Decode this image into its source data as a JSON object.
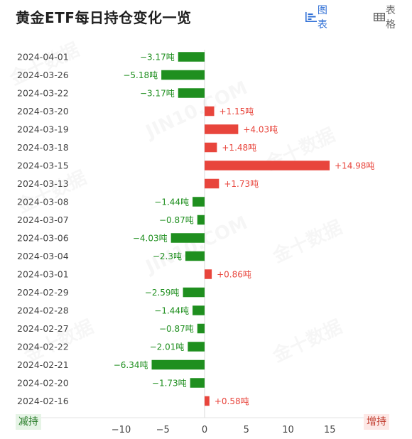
{
  "header": {
    "title": "黄金ETF每日持仓变化一览",
    "chart_tab_label": "图表",
    "table_tab_label": "表格"
  },
  "legend": {
    "left_label": "减持",
    "right_label": "增持"
  },
  "watermarks": [
    "金十数据",
    "JIN10.COM"
  ],
  "colors": {
    "positive": "#e8453c",
    "negative": "#1f8f1f",
    "accent": "#2f6fd6"
  },
  "chart_data": {
    "type": "bar",
    "orientation": "horizontal",
    "categories": [
      "2024-04-01",
      "2024-03-26",
      "2024-03-22",
      "2024-03-20",
      "2024-03-19",
      "2024-03-18",
      "2024-03-15",
      "2024-03-13",
      "2024-03-08",
      "2024-03-07",
      "2024-03-06",
      "2024-03-04",
      "2024-03-01",
      "2024-02-29",
      "2024-02-28",
      "2024-02-27",
      "2024-02-22",
      "2024-02-21",
      "2024-02-20",
      "2024-02-16"
    ],
    "values": [
      -3.17,
      -5.18,
      -3.17,
      1.15,
      4.03,
      1.48,
      14.98,
      1.73,
      -1.44,
      -0.87,
      -4.03,
      -2.3,
      0.86,
      -2.59,
      -1.44,
      -0.87,
      -2.01,
      -6.34,
      -1.73,
      0.58
    ],
    "labels": [
      "−3.17吨",
      "−5.18吨",
      "−3.17吨",
      "+1.15吨",
      "+4.03吨",
      "+1.48吨",
      "+14.98吨",
      "+1.73吨",
      "−1.44吨",
      "−0.87吨",
      "−4.03吨",
      "−2.3吨",
      "+0.86吨",
      "−2.59吨",
      "−1.44吨",
      "−0.87吨",
      "−2.01吨",
      "−6.34吨",
      "−1.73吨",
      "+0.58吨"
    ],
    "xlim": [
      -15,
      20
    ],
    "xticks": [
      -10,
      -5,
      0,
      5,
      10,
      15
    ],
    "xtick_labels": [
      "−10",
      "−5",
      "0",
      "5",
      "10",
      "15"
    ],
    "grid": false
  }
}
